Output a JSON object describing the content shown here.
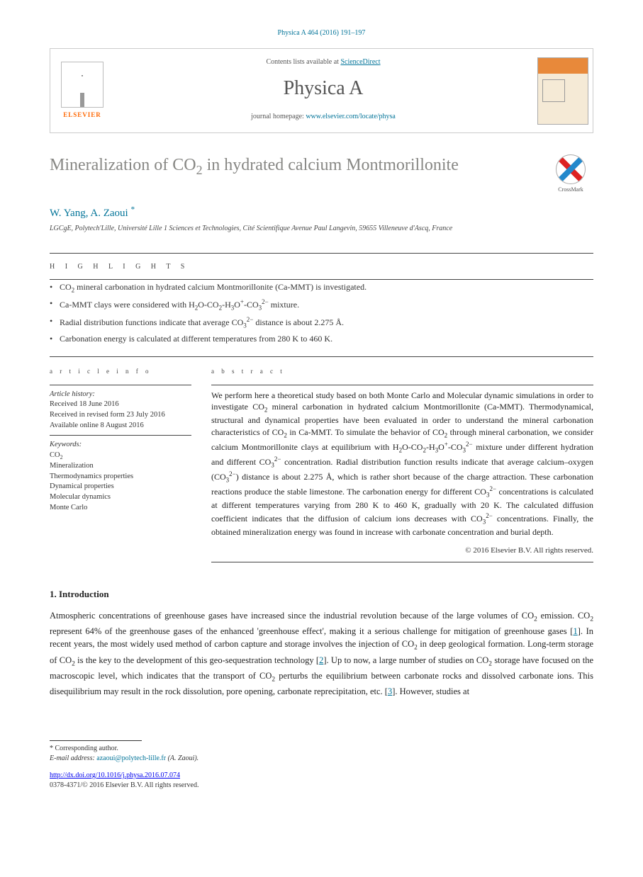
{
  "citation": "Physica A 464 (2016) 191–197",
  "banner": {
    "contents_prefix": "Contents lists available at ",
    "contents_link": "ScienceDirect",
    "journal": "Physica A",
    "homepage_prefix": "journal homepage: ",
    "homepage_url": "www.elsevier.com/locate/physa",
    "publisher_word": "ELSEVIER",
    "cover_top_color": "#e8893a",
    "cover_bg_color": "#f5ead6"
  },
  "title_html": "Mineralization of CO<sub>2</sub> in hydrated calcium Montmorillonite",
  "crossmark_label": "CrossMark",
  "authors_html": "W. Yang, A. Zaoui <sup>*</sup>",
  "affiliation": "LGCgE, Polytech'Lille, Université Lille 1 Sciences et Technologies, Cité Scientifique Avenue Paul Langevin, 59655 Villeneuve d'Ascq, France",
  "labels": {
    "highlights": "h i g h l i g h t s",
    "article_info": "a r t i c l e   i n f o",
    "abstract": "a b s t r a c t",
    "history": "Article history:",
    "keywords": "Keywords:"
  },
  "highlights": [
    "CO<sub>2</sub> mineral carbonation in hydrated calcium Montmorillonite (Ca-MMT) is investigated.",
    "Ca-MMT clays were considered with H<sub>2</sub>O-CO<sub>2</sub>-H<sub>3</sub>O<sup>+</sup>-CO<sub>3</sub><sup>2−</sup> mixture.",
    "Radial distribution functions indicate that average CO<sub>3</sub><sup>2−</sup> distance is about 2.275 Å.",
    "Carbonation energy is calculated at different temperatures from 280 K to 460 K."
  ],
  "history": {
    "received": "Received 18 June 2016",
    "revised": "Received in revised form 23 July 2016",
    "online": "Available online 8 August 2016"
  },
  "keywords": [
    "CO2",
    "Mineralization",
    "Thermodynamics properties",
    "Dynamical properties",
    "Molecular dynamics",
    "Monte Carlo"
  ],
  "abstract_html": "We perform here a theoretical study based on both Monte Carlo and Molecular dynamic simulations in order to investigate CO<sub>2</sub> mineral carbonation in hydrated calcium Montmorillonite (Ca-MMT). Thermodynamical, structural and dynamical properties have been evaluated in order to understand the mineral carbonation characteristics of CO<sub>2</sub> in Ca-MMT. To simulate the behavior of CO<sub>2</sub> through mineral carbonation, we consider calcium Montmorillonite clays at equilibrium with H<sub>2</sub>O-CO<sub>2</sub>-H<sub>3</sub>O<sup>+</sup>-CO<sub>3</sub><sup>2−</sup> mixture under different hydration and different CO<sub>3</sub><sup>2−</sup> concentration. Radial distribution function results indicate that average calcium–oxygen (CO<sub>3</sub><sup>2−</sup>) distance is about 2.275 Å, which is rather short because of the charge attraction. These carbonation reactions produce the stable limestone. The carbonation energy for different CO<sub>3</sub><sup>2−</sup> concentrations is calculated at different temperatures varying from 280 K to 460 K, gradually with 20 K. The calculated diffusion coefficient indicates that the diffusion of calcium ions decreases with CO<sub>3</sub><sup>2−</sup> concentrations. Finally, the obtained mineralization energy was found in increase with carbonate concentration and burial depth.",
  "copyright": "© 2016 Elsevier B.V. All rights reserved.",
  "intro": {
    "heading": "1. Introduction",
    "body_html": "Atmospheric concentrations of greenhouse gases have increased since the industrial revolution because of the large volumes of CO<sub>2</sub> emission. CO<sub>2</sub> represent 64% of the greenhouse gases of the enhanced 'greenhouse effect', making it a serious challenge for mitigation of greenhouse gases [<a class=\"ref\" href=\"#\">1</a>]. In recent years, the most widely used method of carbon capture and storage involves the injection of CO<sub>2</sub> in deep geological formation. Long-term storage of CO<sub>2</sub> is the key to the development of this geo-sequestration technology [<a class=\"ref\" href=\"#\">2</a>]. Up to now, a large number of studies on CO<sub>2</sub> storage have focused on the macroscopic level, which indicates that the transport of CO<sub>2</sub> perturbs the equilibrium between carbonate rocks and dissolved carbonate ions. This disequilibrium may result in the rock dissolution, pore opening, carbonate reprecipitation, etc. [<a class=\"ref\" href=\"#\">3</a>]. However, studies at"
  },
  "footnotes": {
    "corresponding": "Corresponding author.",
    "email_label": "E-mail address: ",
    "email": "azaoui@polytech-lille.fr",
    "email_person": " (A. Zaoui)."
  },
  "doi": "http://dx.doi.org/10.1016/j.physa.2016.07.074",
  "issn_line": "0378-4371/© 2016 Elsevier B.V. All rights reserved.",
  "colors": {
    "link": "#007398",
    "title": "#878784",
    "elsevier_orange": "#ff6600",
    "text": "#333333"
  }
}
